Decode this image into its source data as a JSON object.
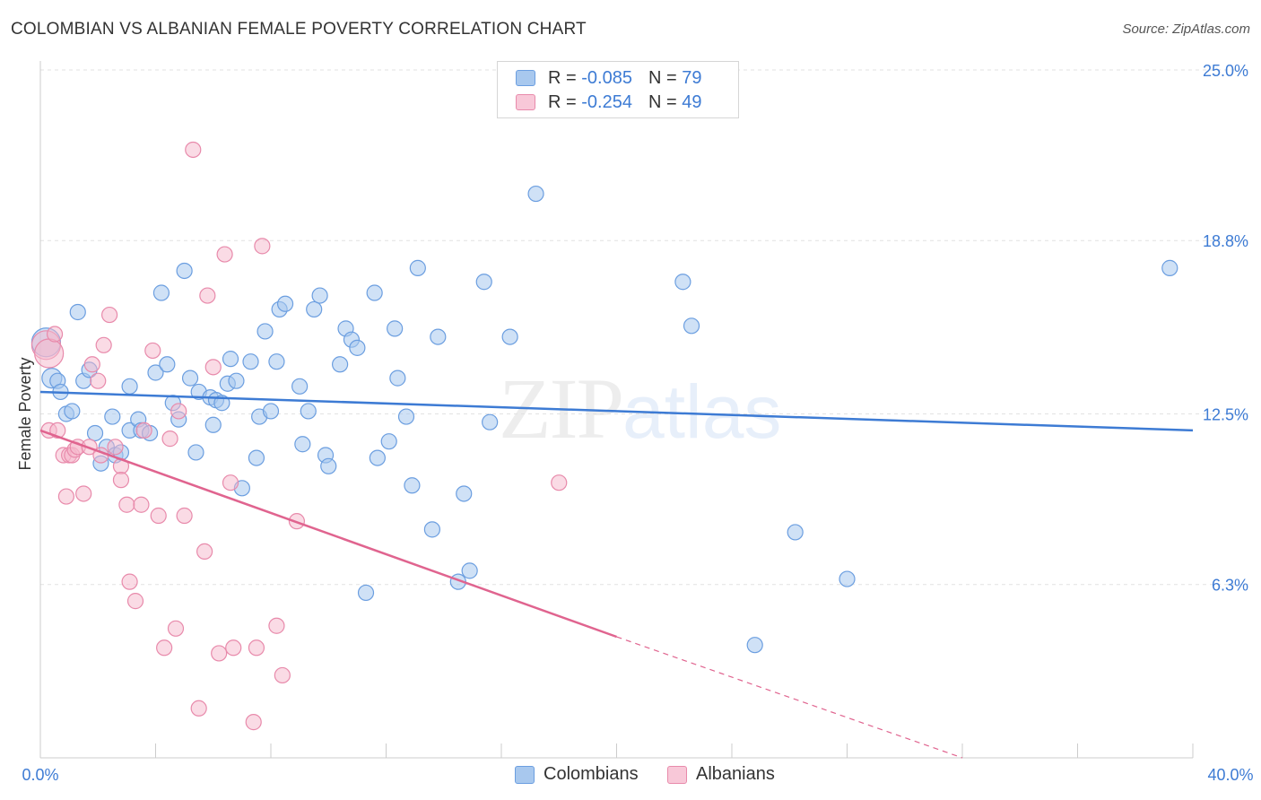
{
  "header": {
    "title": "COLOMBIAN VS ALBANIAN FEMALE POVERTY CORRELATION CHART",
    "source": "Source: ZipAtlas.com"
  },
  "legend": {
    "rows": [
      {
        "r_label": "R =",
        "r_value": "-0.085",
        "n_label": "N =",
        "n_value": "79"
      },
      {
        "r_label": "R =",
        "r_value": "-0.254",
        "n_label": "N =",
        "n_value": "49"
      }
    ]
  },
  "bottom_legend": {
    "colombians": "Colombians",
    "albanians": "Albanians"
  },
  "watermark": {
    "zip": "ZIP",
    "atlas": "atlas"
  },
  "colors": {
    "blue": "#3d7bd4",
    "blue_fill": "#a8c8ee",
    "pink": "#e0648f",
    "pink_fill": "#f5b8cc"
  },
  "chart_data": {
    "type": "scatter",
    "title": "COLOMBIAN VS ALBANIAN FEMALE POVERTY CORRELATION CHART",
    "xlabel": "",
    "ylabel": "Female Poverty",
    "xlim": [
      0,
      40
    ],
    "ylim": [
      0,
      25
    ],
    "x_tick_labels": [
      "0.0%",
      "40.0%"
    ],
    "y_ticks": [
      6.3,
      12.5,
      18.8,
      25.0
    ],
    "y_tick_labels": [
      "6.3%",
      "12.5%",
      "18.8%",
      "25.0%"
    ],
    "grid": true,
    "series": [
      {
        "name": "Colombians",
        "color": "#3d7bd4",
        "r": -0.085,
        "n": 79,
        "trend": {
          "x": [
            0,
            40
          ],
          "y": [
            13.3,
            11.9
          ]
        },
        "points": [
          [
            0.2,
            15.1
          ],
          [
            0.4,
            13.8
          ],
          [
            0.6,
            13.7
          ],
          [
            0.7,
            13.3
          ],
          [
            0.9,
            12.5
          ],
          [
            1.1,
            12.6
          ],
          [
            1.3,
            16.2
          ],
          [
            1.5,
            13.7
          ],
          [
            1.7,
            14.1
          ],
          [
            1.9,
            11.8
          ],
          [
            2.1,
            10.7
          ],
          [
            2.3,
            11.3
          ],
          [
            2.5,
            12.4
          ],
          [
            2.6,
            11.0
          ],
          [
            2.8,
            11.1
          ],
          [
            3.1,
            11.9
          ],
          [
            3.1,
            13.5
          ],
          [
            3.4,
            12.3
          ],
          [
            3.5,
            11.9
          ],
          [
            3.8,
            11.8
          ],
          [
            4.0,
            14.0
          ],
          [
            4.2,
            16.9
          ],
          [
            4.4,
            14.3
          ],
          [
            4.6,
            12.9
          ],
          [
            4.8,
            12.3
          ],
          [
            5.0,
            17.7
          ],
          [
            5.2,
            13.8
          ],
          [
            5.4,
            11.1
          ],
          [
            5.5,
            13.3
          ],
          [
            5.9,
            13.1
          ],
          [
            6.0,
            12.1
          ],
          [
            6.1,
            13.0
          ],
          [
            6.3,
            12.9
          ],
          [
            6.5,
            13.6
          ],
          [
            6.6,
            14.5
          ],
          [
            6.8,
            13.7
          ],
          [
            7.0,
            9.8
          ],
          [
            7.3,
            14.4
          ],
          [
            7.5,
            10.9
          ],
          [
            7.6,
            12.4
          ],
          [
            7.8,
            15.5
          ],
          [
            8.0,
            12.6
          ],
          [
            8.2,
            14.4
          ],
          [
            8.3,
            16.3
          ],
          [
            8.5,
            16.5
          ],
          [
            9.0,
            13.5
          ],
          [
            9.1,
            11.4
          ],
          [
            9.3,
            12.6
          ],
          [
            9.5,
            16.3
          ],
          [
            9.7,
            16.8
          ],
          [
            9.9,
            11.0
          ],
          [
            10.0,
            10.6
          ],
          [
            10.4,
            14.3
          ],
          [
            10.6,
            15.6
          ],
          [
            10.8,
            15.2
          ],
          [
            11.0,
            14.9
          ],
          [
            11.3,
            6.0
          ],
          [
            11.6,
            16.9
          ],
          [
            11.7,
            10.9
          ],
          [
            12.1,
            11.5
          ],
          [
            12.3,
            15.6
          ],
          [
            12.4,
            13.8
          ],
          [
            12.7,
            12.4
          ],
          [
            12.9,
            9.9
          ],
          [
            13.1,
            17.8
          ],
          [
            13.6,
            8.3
          ],
          [
            13.8,
            15.3
          ],
          [
            14.5,
            6.4
          ],
          [
            14.7,
            9.6
          ],
          [
            14.9,
            6.8
          ],
          [
            15.4,
            17.3
          ],
          [
            15.6,
            12.2
          ],
          [
            16.3,
            15.3
          ],
          [
            17.2,
            20.5
          ],
          [
            22.3,
            17.3
          ],
          [
            22.6,
            15.7
          ],
          [
            24.8,
            4.1
          ],
          [
            26.2,
            8.2
          ],
          [
            28.0,
            6.5
          ],
          [
            39.2,
            17.8
          ]
        ]
      },
      {
        "name": "Albanians",
        "color": "#e0648f",
        "r": -0.254,
        "n": 49,
        "trend": {
          "x": [
            0,
            20
          ],
          "y": [
            11.9,
            4.4
          ]
        },
        "trend_dashed": {
          "x": [
            20,
            32
          ],
          "y": [
            4.4,
            0.0
          ]
        },
        "points": [
          [
            0.2,
            15.0
          ],
          [
            0.3,
            14.7
          ],
          [
            0.3,
            11.9
          ],
          [
            0.5,
            15.4
          ],
          [
            0.6,
            11.9
          ],
          [
            0.8,
            11.0
          ],
          [
            0.9,
            9.5
          ],
          [
            1.0,
            11.0
          ],
          [
            1.1,
            11.0
          ],
          [
            1.2,
            11.2
          ],
          [
            1.3,
            11.3
          ],
          [
            1.5,
            9.6
          ],
          [
            1.7,
            11.3
          ],
          [
            1.8,
            14.3
          ],
          [
            2.0,
            13.7
          ],
          [
            2.1,
            11.0
          ],
          [
            2.2,
            15.0
          ],
          [
            2.4,
            16.1
          ],
          [
            2.6,
            11.3
          ],
          [
            2.8,
            10.6
          ],
          [
            2.8,
            10.1
          ],
          [
            3.0,
            9.2
          ],
          [
            3.1,
            6.4
          ],
          [
            3.3,
            5.7
          ],
          [
            3.5,
            9.2
          ],
          [
            3.6,
            11.9
          ],
          [
            3.9,
            14.8
          ],
          [
            4.1,
            8.8
          ],
          [
            4.3,
            4.0
          ],
          [
            4.5,
            11.6
          ],
          [
            4.7,
            4.7
          ],
          [
            4.8,
            12.6
          ],
          [
            5.0,
            8.8
          ],
          [
            5.5,
            1.8
          ],
          [
            5.7,
            7.5
          ],
          [
            5.8,
            16.8
          ],
          [
            6.0,
            14.2
          ],
          [
            6.2,
            3.8
          ],
          [
            6.4,
            18.3
          ],
          [
            6.6,
            10.0
          ],
          [
            6.7,
            4.0
          ],
          [
            7.4,
            1.3
          ],
          [
            7.5,
            4.0
          ],
          [
            7.7,
            18.6
          ],
          [
            8.2,
            4.8
          ],
          [
            8.4,
            3.0
          ],
          [
            8.9,
            8.6
          ],
          [
            5.3,
            22.1
          ],
          [
            18.0,
            10.0
          ]
        ]
      }
    ]
  }
}
